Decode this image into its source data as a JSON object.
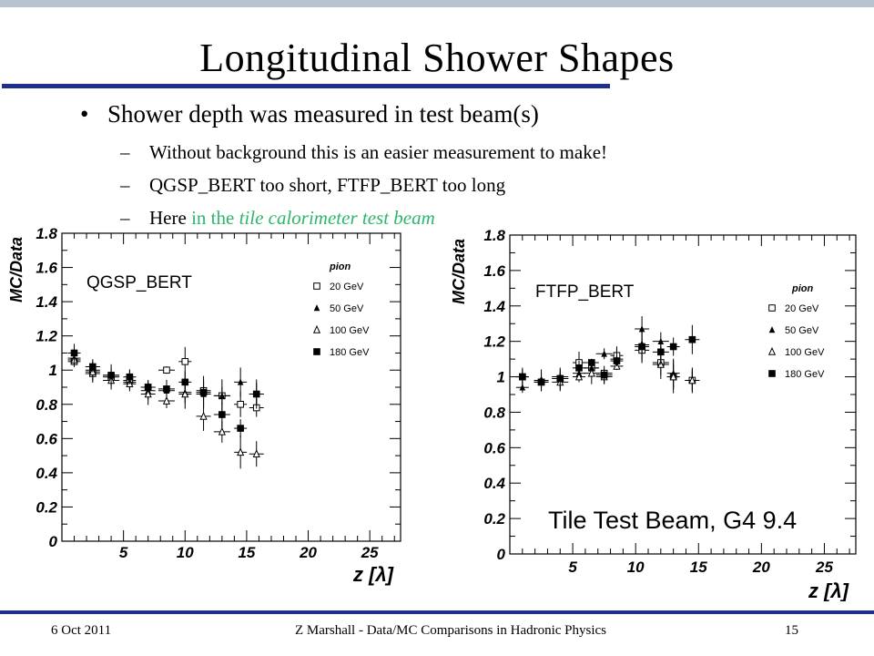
{
  "slide": {
    "title": "Longitudinal Shower Shapes",
    "bullets": [
      {
        "text": "Shower depth was measured in test beam(s)"
      }
    ],
    "subbullets": [
      {
        "text": "Without background this is an easier measurement to make!"
      },
      {
        "text": "QGSP_BERT too short, FTFP_BERT too long"
      },
      {
        "prefix": "Here",
        "green": "in the",
        "green_italic": "tile calorimeter test beam"
      }
    ],
    "footer": {
      "date": "6 Oct 2011",
      "center": "Z Marshall - Data/MC Comparisons in Hadronic Physics",
      "page": "15"
    }
  },
  "chart_data": [
    {
      "type": "scatter",
      "title": "",
      "label": "QGSP_BERT",
      "legend_title": "pion",
      "legend_placement": "top-right",
      "xlabel": "z [λ]",
      "ylabel": "MC/Data",
      "xlim": [
        0,
        27.5
      ],
      "ylim": [
        0,
        1.8
      ],
      "xticks": [
        5,
        10,
        15,
        20,
        25
      ],
      "yticks": [
        0,
        0.2,
        0.4,
        0.6,
        0.8,
        1,
        1.2,
        1.4,
        1.6,
        1.8
      ],
      "ytick_labels": [
        "0",
        "0.2",
        "0.4",
        "0.6",
        "0.8",
        "1",
        "1.2",
        "1.4",
        "1.6",
        "1.8"
      ],
      "series": [
        {
          "name": "20 GeV",
          "marker": "open-square",
          "x": [
            1,
            2.5,
            4,
            5.5,
            7,
            8.5,
            10,
            11.5,
            13,
            14.5,
            15.8
          ],
          "y": [
            1.05,
            0.98,
            0.96,
            0.94,
            0.9,
            1.0,
            1.05,
            0.88,
            0.85,
            0.8,
            0.78
          ]
        },
        {
          "name": "50 GeV",
          "marker": "filled-triangle",
          "x": [
            1,
            2.5,
            4,
            5.5,
            7,
            8.5,
            10,
            11.5,
            13,
            14.5,
            15.8
          ],
          "y": [
            1.07,
            1.0,
            0.97,
            0.93,
            0.88,
            0.88,
            0.87,
            0.86,
            0.85,
            0.93,
            0.86
          ]
        },
        {
          "name": "100 GeV",
          "marker": "open-triangle",
          "x": [
            1,
            2.5,
            4,
            5.5,
            7,
            8.5,
            10,
            11.5,
            13,
            14.5,
            15.8
          ],
          "y": [
            1.06,
            0.99,
            0.94,
            0.92,
            0.86,
            0.82,
            0.86,
            0.73,
            0.64,
            0.52,
            0.51
          ]
        },
        {
          "name": "180 GeV",
          "marker": "filled-square",
          "x": [
            1,
            2.5,
            4,
            5.5,
            7,
            8.5,
            10,
            11.5,
            13,
            14.5,
            15.8
          ],
          "y": [
            1.1,
            1.02,
            0.97,
            0.96,
            0.9,
            0.89,
            0.93,
            0.87,
            0.74,
            0.66,
            0.86
          ]
        }
      ]
    },
    {
      "type": "scatter",
      "title": "",
      "label": "FTFP_BERT",
      "annotation": "Tile Test Beam, G4 9.4",
      "legend_title": "pion",
      "legend_placement": "top-right",
      "xlabel": "z [λ]",
      "ylabel": "MC/Data",
      "xlim": [
        0,
        27.5
      ],
      "ylim": [
        0,
        1.8
      ],
      "xticks": [
        5,
        10,
        15,
        20,
        25
      ],
      "yticks": [
        0,
        0.2,
        0.4,
        0.6,
        0.8,
        1,
        1.2,
        1.4,
        1.6,
        1.8
      ],
      "ytick_labels": [
        "0",
        "0.2",
        "0.4",
        "0.6",
        "0.8",
        "1",
        "1.2",
        "1.4",
        "1.6",
        "1.8"
      ],
      "series": [
        {
          "name": "20 GeV",
          "marker": "open-square",
          "x": [
            1,
            2.5,
            4,
            5.5,
            6.5,
            7.5,
            8.5,
            10.5,
            12,
            13,
            14.5
          ],
          "y": [
            1.0,
            0.97,
            0.99,
            1.08,
            1.05,
            1.02,
            1.12,
            1.15,
            1.08,
            1.0,
            0.98
          ]
        },
        {
          "name": "50 GeV",
          "marker": "filled-triangle",
          "x": [
            1,
            2.5,
            4,
            5.5,
            6.5,
            7.5,
            8.5,
            10.5,
            12,
            13,
            14.5
          ],
          "y": [
            0.94,
            0.98,
            1.0,
            1.02,
            1.05,
            1.13,
            1.1,
            1.27,
            1.2,
            1.02,
            0.98
          ]
        },
        {
          "name": "100 GeV",
          "marker": "open-triangle",
          "x": [
            1,
            2.5,
            4,
            5.5,
            6.5,
            7.5,
            8.5,
            10.5,
            12,
            13,
            14.5
          ],
          "y": [
            1.0,
            0.98,
            0.97,
            1.0,
            1.02,
            1.0,
            1.06,
            1.18,
            1.07,
            1.0,
            0.98
          ]
        },
        {
          "name": "180 GeV",
          "marker": "filled-square",
          "x": [
            1,
            2.5,
            4,
            5.5,
            6.5,
            7.5,
            8.5,
            10.5,
            12,
            13,
            14.5
          ],
          "y": [
            1.0,
            0.97,
            0.99,
            1.05,
            1.08,
            1.01,
            1.09,
            1.17,
            1.14,
            1.17,
            1.21
          ]
        }
      ]
    }
  ]
}
